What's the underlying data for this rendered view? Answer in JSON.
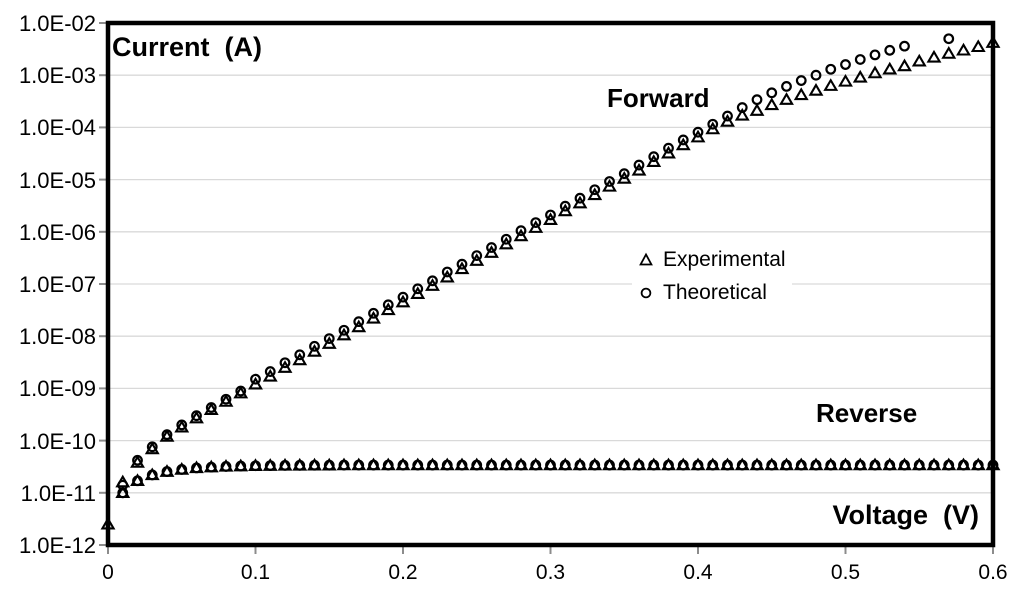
{
  "labels": {
    "current": "Current  (A)",
    "voltage": "Voltage  (V)",
    "forward": "Forward",
    "reverse": "Reverse"
  },
  "colors": {
    "marker": "#000000",
    "frame": "#000000",
    "gridline": "#d9d9d9",
    "tick": "#8c8c8c",
    "background": "#ffffff"
  },
  "chart_data": {
    "type": "scatter",
    "title": "",
    "xlabel": "Voltage (V)",
    "ylabel": "Current (A)",
    "x_axis": {
      "min": 0,
      "max": 0.6,
      "ticks": [
        "0",
        "0.1",
        "0.2",
        "0.3",
        "0.4",
        "0.5",
        "0.6"
      ],
      "tick_values": [
        0,
        0.1,
        0.2,
        0.3,
        0.4,
        0.5,
        0.6
      ]
    },
    "y_axis": {
      "scale": "log",
      "min": 1e-12,
      "max": 0.01,
      "ticks": [
        "1.0E-02",
        "1.0E-03",
        "1.0E-04",
        "1.0E-05",
        "1.0E-06",
        "1.0E-07",
        "1.0E-08",
        "1.0E-09",
        "1.0E-10",
        "1.0E-11",
        "1.0E-12"
      ],
      "tick_values": [
        0.01,
        0.001,
        0.0001,
        1e-05,
        1e-06,
        1e-07,
        1e-08,
        1e-09,
        1e-10,
        1e-11,
        1e-12
      ]
    },
    "grid": "horizontal-only",
    "legend": [
      {
        "label": "Experimental",
        "marker": "triangle"
      },
      {
        "label": "Theoretical",
        "marker": "circle"
      }
    ],
    "annotations": [
      {
        "text": "Forward",
        "x": 0.21,
        "y": 0.0003
      },
      {
        "text": "Reverse",
        "x": 0.49,
        "y": 2e-10
      }
    ],
    "series": [
      {
        "name": "Forward Experimental",
        "marker": "triangle",
        "x": [
          0,
          0.01,
          0.02,
          0.03,
          0.04,
          0.05,
          0.06,
          0.07,
          0.08,
          0.09,
          0.1,
          0.11,
          0.12,
          0.13,
          0.14,
          0.15,
          0.16,
          0.17,
          0.18,
          0.19,
          0.2,
          0.21,
          0.22,
          0.23,
          0.24,
          0.25,
          0.26,
          0.27,
          0.28,
          0.29,
          0.3,
          0.31,
          0.32,
          0.33,
          0.34,
          0.35,
          0.36,
          0.37,
          0.38,
          0.39,
          0.4,
          0.41,
          0.42,
          0.43,
          0.44,
          0.45,
          0.46,
          0.47,
          0.48,
          0.49,
          0.5,
          0.51,
          0.52,
          0.53,
          0.54,
          0.55,
          0.56,
          0.57,
          0.58,
          0.59,
          0.6
        ],
        "y": [
          2.5e-12,
          1.6e-11,
          3.8e-11,
          6.9e-11,
          1.2e-10,
          1.8e-10,
          2.7e-10,
          3.9e-10,
          5.6e-10,
          8.1e-10,
          1.2e-09,
          1.7e-09,
          2.5e-09,
          3.5e-09,
          5.1e-09,
          7.2e-09,
          1.05e-08,
          1.5e-08,
          2.2e-08,
          3.2e-08,
          4.5e-08,
          6.5e-08,
          9.3e-08,
          1.35e-07,
          1.95e-07,
          2.8e-07,
          4e-07,
          5.8e-07,
          8.3e-07,
          1.2e-06,
          1.7e-06,
          2.5e-06,
          3.55e-06,
          5.1e-06,
          7.4e-06,
          1.05e-05,
          1.5e-05,
          2.2e-05,
          3.2e-05,
          4.6e-05,
          6.5e-05,
          9.3e-05,
          0.00013,
          0.00017,
          0.00021,
          0.00027,
          0.00034,
          0.00042,
          0.00051,
          0.00063,
          0.00076,
          0.00091,
          0.0011,
          0.0013,
          0.0015,
          0.00185,
          0.0022,
          0.0026,
          0.003,
          0.0035,
          0.0042
        ]
      },
      {
        "name": "Forward Theoretical",
        "marker": "circle",
        "x": [
          0.01,
          0.02,
          0.03,
          0.04,
          0.05,
          0.06,
          0.07,
          0.08,
          0.09,
          0.1,
          0.11,
          0.12,
          0.13,
          0.14,
          0.15,
          0.16,
          0.17,
          0.18,
          0.19,
          0.2,
          0.21,
          0.22,
          0.23,
          0.24,
          0.25,
          0.26,
          0.27,
          0.28,
          0.29,
          0.3,
          0.31,
          0.32,
          0.33,
          0.34,
          0.35,
          0.36,
          0.37,
          0.38,
          0.39,
          0.4,
          0.41,
          0.42,
          0.43,
          0.44,
          0.45,
          0.46,
          0.47,
          0.48,
          0.49,
          0.5,
          0.51,
          0.52,
          0.53,
          0.54,
          0.57
        ],
        "y": [
          1.4e-11,
          4.2e-11,
          7.6e-11,
          1.3e-10,
          2e-10,
          3e-10,
          4.3e-10,
          6.2e-10,
          8.9e-10,
          1.5e-09,
          2.1e-09,
          3.1e-09,
          4.4e-09,
          6.4e-09,
          9e-09,
          1.3e-08,
          1.9e-08,
          2.75e-08,
          4e-08,
          5.6e-08,
          8.1e-08,
          1.15e-07,
          1.7e-07,
          2.4e-07,
          3.5e-07,
          5e-07,
          7.2e-07,
          1.05e-06,
          1.5e-06,
          2.1e-06,
          3.1e-06,
          4.4e-06,
          6.4e-06,
          9.2e-06,
          1.3e-05,
          1.9e-05,
          2.75e-05,
          4e-05,
          5.75e-05,
          8.1e-05,
          0.000115,
          0.000165,
          0.00024,
          0.00034,
          0.00046,
          0.00061,
          0.00079,
          0.001,
          0.0013,
          0.0016,
          0.002,
          0.00245,
          0.003,
          0.0036,
          0.005
        ]
      },
      {
        "name": "Reverse Experimental",
        "marker": "triangle",
        "x": [
          0.01,
          0.02,
          0.03,
          0.04,
          0.05,
          0.06,
          0.07,
          0.08,
          0.09,
          0.1,
          0.11,
          0.12,
          0.13,
          0.14,
          0.15,
          0.16,
          0.17,
          0.18,
          0.19,
          0.2,
          0.21,
          0.22,
          0.23,
          0.24,
          0.25,
          0.26,
          0.27,
          0.28,
          0.29,
          0.3,
          0.31,
          0.32,
          0.33,
          0.34,
          0.35,
          0.36,
          0.37,
          0.38,
          0.39,
          0.4,
          0.41,
          0.42,
          0.43,
          0.44,
          0.45,
          0.46,
          0.47,
          0.48,
          0.49,
          0.5,
          0.51,
          0.52,
          0.53,
          0.54,
          0.55,
          0.56,
          0.57,
          0.58,
          0.59,
          0.6
        ],
        "y": [
          1e-11,
          1.7e-11,
          2.2e-11,
          2.55e-11,
          2.8e-11,
          3e-11,
          3.1e-11,
          3.2e-11,
          3.25e-11,
          3.3e-11,
          3.32e-11,
          3.35e-11,
          3.36e-11,
          3.37e-11,
          3.38e-11,
          3.4e-11,
          3.4e-11,
          3.4e-11,
          3.4e-11,
          3.4e-11,
          3.4e-11,
          3.4e-11,
          3.4e-11,
          3.4e-11,
          3.4e-11,
          3.4e-11,
          3.4e-11,
          3.4e-11,
          3.4e-11,
          3.4e-11,
          3.4e-11,
          3.4e-11,
          3.4e-11,
          3.4e-11,
          3.4e-11,
          3.4e-11,
          3.4e-11,
          3.4e-11,
          3.4e-11,
          3.4e-11,
          3.4e-11,
          3.4e-11,
          3.4e-11,
          3.4e-11,
          3.4e-11,
          3.4e-11,
          3.4e-11,
          3.4e-11,
          3.4e-11,
          3.4e-11,
          3.4e-11,
          3.4e-11,
          3.4e-11,
          3.4e-11,
          3.4e-11,
          3.4e-11,
          3.4e-11,
          3.4e-11,
          3.4e-11,
          3.4e-11
        ]
      },
      {
        "name": "Reverse Theoretical",
        "marker": "circle",
        "x": [
          0.01,
          0.02,
          0.03,
          0.04,
          0.05,
          0.06,
          0.07,
          0.08,
          0.09,
          0.1,
          0.11,
          0.12,
          0.13,
          0.14,
          0.15,
          0.16,
          0.17,
          0.18,
          0.19,
          0.2,
          0.21,
          0.22,
          0.23,
          0.24,
          0.25,
          0.26,
          0.27,
          0.28,
          0.29,
          0.3,
          0.31,
          0.32,
          0.33,
          0.34,
          0.35,
          0.36,
          0.37,
          0.38,
          0.39,
          0.4,
          0.41,
          0.42,
          0.43,
          0.44,
          0.45,
          0.46,
          0.47,
          0.48,
          0.49,
          0.5,
          0.51,
          0.52,
          0.53,
          0.54,
          0.55,
          0.56,
          0.57,
          0.58,
          0.59,
          0.6
        ],
        "y": [
          1e-11,
          1.7e-11,
          2.2e-11,
          2.55e-11,
          2.8e-11,
          3e-11,
          3.1e-11,
          3.2e-11,
          3.25e-11,
          3.3e-11,
          3.32e-11,
          3.35e-11,
          3.36e-11,
          3.37e-11,
          3.38e-11,
          3.4e-11,
          3.4e-11,
          3.4e-11,
          3.4e-11,
          3.4e-11,
          3.4e-11,
          3.4e-11,
          3.4e-11,
          3.4e-11,
          3.4e-11,
          3.4e-11,
          3.4e-11,
          3.4e-11,
          3.4e-11,
          3.4e-11,
          3.4e-11,
          3.4e-11,
          3.4e-11,
          3.4e-11,
          3.4e-11,
          3.4e-11,
          3.4e-11,
          3.4e-11,
          3.4e-11,
          3.4e-11,
          3.4e-11,
          3.4e-11,
          3.4e-11,
          3.4e-11,
          3.4e-11,
          3.4e-11,
          3.4e-11,
          3.4e-11,
          3.4e-11,
          3.4e-11,
          3.4e-11,
          3.4e-11,
          3.4e-11,
          3.4e-11,
          3.4e-11,
          3.4e-11,
          3.4e-11,
          3.4e-11,
          3.4e-11,
          3.4e-11
        ]
      }
    ]
  }
}
